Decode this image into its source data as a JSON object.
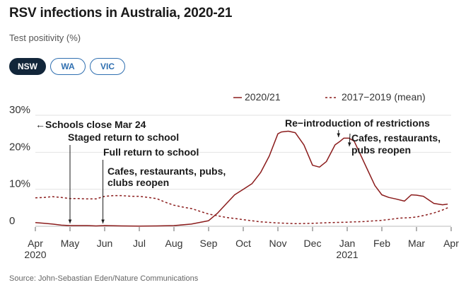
{
  "header": {
    "title": "RSV infections in Australia, 2020-21",
    "subtitle": "Test positivity (%)"
  },
  "tabs": [
    {
      "label": "NSW",
      "active": true
    },
    {
      "label": "WA",
      "active": false
    },
    {
      "label": "VIC",
      "active": false
    }
  ],
  "colors": {
    "series": "#8b1c1c",
    "tab_accent": "#2f6fb0",
    "tab_active_bg": "#12263a"
  },
  "chart_data": {
    "type": "line",
    "y_ticks": [
      "30%",
      "20%",
      "10%",
      "0"
    ],
    "ylim": [
      0,
      30
    ],
    "x_ticks": [
      "Apr",
      "May",
      "Jun",
      "Jul",
      "Aug",
      "Sep",
      "Oct",
      "Nov",
      "Dec",
      "Jan",
      "Feb",
      "Mar",
      "Apr"
    ],
    "x_year_labels": [
      {
        "label": "2020",
        "under": "Apr"
      },
      {
        "label": "2021",
        "under": "Jan"
      }
    ],
    "grid": true,
    "legend": [
      "2020/21",
      "2017−2019 (mean)"
    ],
    "series": [
      {
        "name": "2020/21",
        "style": "solid",
        "x": [
          0,
          0.25,
          0.5,
          0.75,
          1,
          1.25,
          1.5,
          1.75,
          2,
          2.5,
          3,
          3.5,
          4,
          4.5,
          5,
          5.25,
          5.5,
          5.75,
          6,
          6.25,
          6.5,
          6.75,
          7,
          7.1,
          7.3,
          7.5,
          7.75,
          8,
          8.2,
          8.4,
          8.65,
          8.8,
          8.9,
          9.05,
          9.2,
          9.35,
          9.6,
          9.8,
          10,
          10.2,
          10.4,
          10.65,
          10.85,
          11,
          11.2,
          11.5,
          11.75,
          11.9
        ],
        "y": [
          1.0,
          0.8,
          0.6,
          0.3,
          0.2,
          0.2,
          0.2,
          0.1,
          0.2,
          0.1,
          0.05,
          0.1,
          0.2,
          0.6,
          1.5,
          3.5,
          6.0,
          8.5,
          10.0,
          11.5,
          14.5,
          19.0,
          25.0,
          25.5,
          25.7,
          25.3,
          22.0,
          16.5,
          16.0,
          17.5,
          22.0,
          23.0,
          23.8,
          23.8,
          23.0,
          20.0,
          15.0,
          11.0,
          8.5,
          7.8,
          7.4,
          6.8,
          8.5,
          8.4,
          8.1,
          6.2,
          5.8,
          6.0
        ]
      },
      {
        "name": "2017−2019 (mean)",
        "style": "dashed",
        "x": [
          0,
          0.25,
          0.5,
          0.75,
          1,
          1.25,
          1.5,
          1.75,
          2,
          2.25,
          2.5,
          2.75,
          3,
          3.25,
          3.5,
          3.75,
          4,
          4.25,
          4.5,
          5,
          5.5,
          6,
          6.5,
          7,
          7.5,
          8,
          8.5,
          9,
          9.5,
          10,
          10.25,
          10.5,
          10.75,
          11,
          11.25,
          11.5,
          11.75,
          11.95
        ],
        "y": [
          7.7,
          7.8,
          8.0,
          7.8,
          7.5,
          7.5,
          7.4,
          7.4,
          8.1,
          8.3,
          8.3,
          8.1,
          8.1,
          7.8,
          7.5,
          6.5,
          5.7,
          5.2,
          4.8,
          3.3,
          2.4,
          1.8,
          1.2,
          0.9,
          0.7,
          0.8,
          1.0,
          1.1,
          1.3,
          1.6,
          1.9,
          2.2,
          2.3,
          2.5,
          3.0,
          3.6,
          4.4,
          5.2
        ]
      }
    ],
    "annotations": [
      {
        "text": "←Schools close Mar 24"
      },
      {
        "text": "Staged return to school",
        "x": 1.0
      },
      {
        "text": "Full return to school",
        "x": 1.95
      },
      {
        "text": "Cafes, restaurants, pubs,",
        "text2": "clubs reopen",
        "x": 2.0
      },
      {
        "text": "Re−introduction of restrictions",
        "x": 8.75
      },
      {
        "text": "Cafes, restaurants,",
        "text2": "pubs reopen",
        "x": 9.0
      }
    ]
  },
  "footer": {
    "source": "Source: John-Sebastian Eden/Nature Communications"
  }
}
